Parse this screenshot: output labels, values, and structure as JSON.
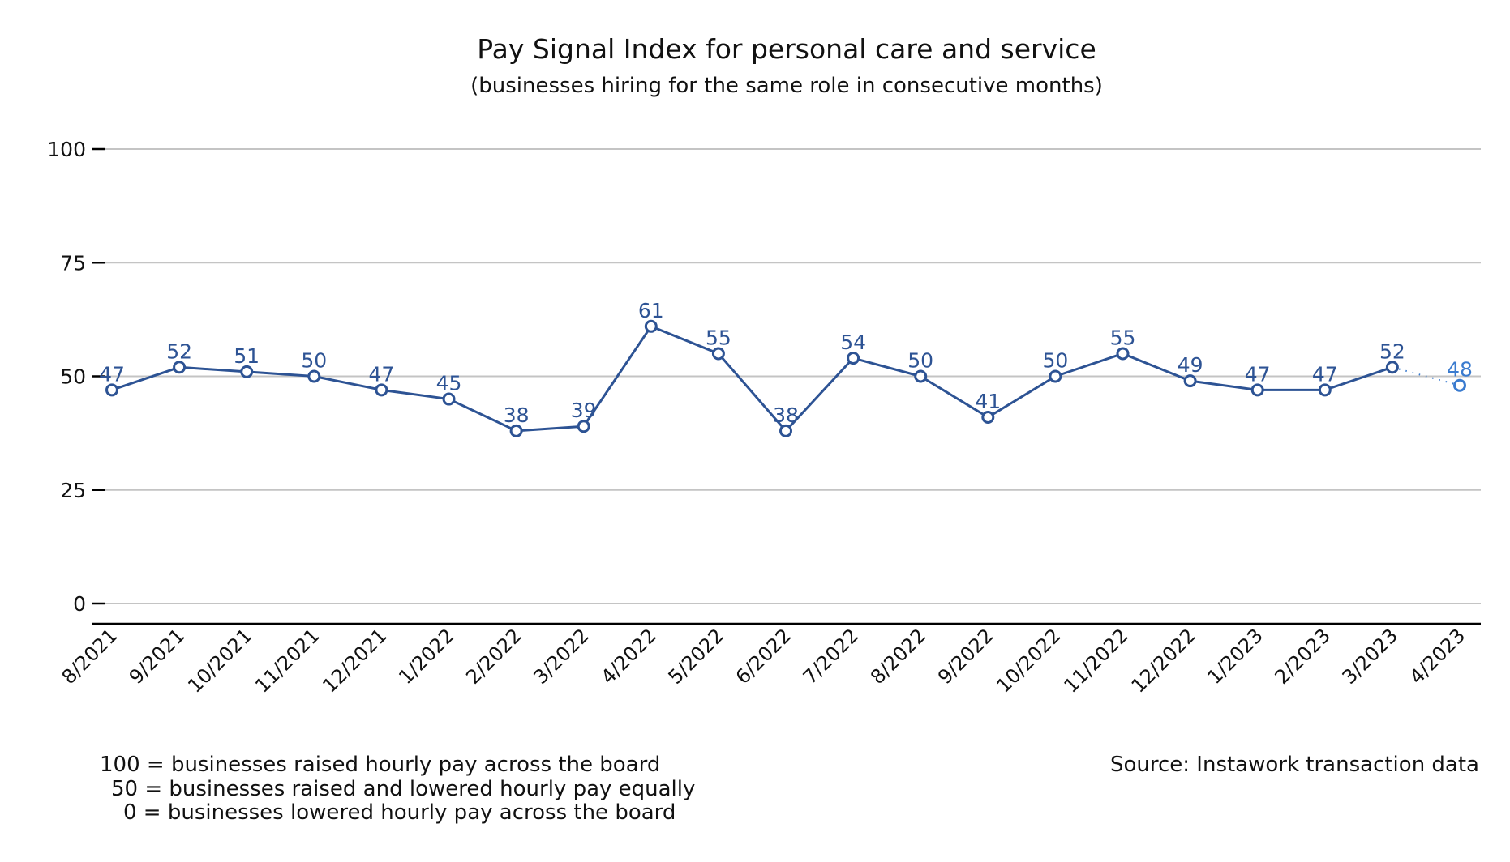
{
  "chart_data": {
    "type": "line",
    "title": "Pay Signal Index for personal care and service",
    "subtitle": "(businesses hiring for the same role in consecutive months)",
    "xlabel": "",
    "ylabel": "",
    "ylim": [
      0,
      100
    ],
    "yticks": [
      0,
      25,
      50,
      75,
      100
    ],
    "grid": true,
    "categories": [
      "8/2021",
      "9/2021",
      "10/2021",
      "11/2021",
      "12/2021",
      "1/2022",
      "2/2022",
      "3/2022",
      "4/2022",
      "5/2022",
      "6/2022",
      "7/2022",
      "8/2022",
      "9/2022",
      "10/2022",
      "11/2022",
      "12/2022",
      "1/2023",
      "2/2023",
      "3/2023",
      "4/2023"
    ],
    "series": [
      {
        "name": "Pay Signal Index",
        "values": [
          47,
          52,
          51,
          50,
          47,
          45,
          38,
          39,
          61,
          55,
          38,
          54,
          50,
          41,
          50,
          55,
          49,
          47,
          47,
          52,
          48
        ],
        "color": "#2d5394",
        "preliminary_color": "#3a7bcf",
        "preliminary_last_point": true
      }
    ],
    "notes": [
      "100 = businesses raised hourly pay across the board",
      "50 = businesses raised and lowered hourly pay equally",
      "0 = businesses lowered hourly pay across the board"
    ],
    "source": "Source: Instawork transaction data"
  }
}
